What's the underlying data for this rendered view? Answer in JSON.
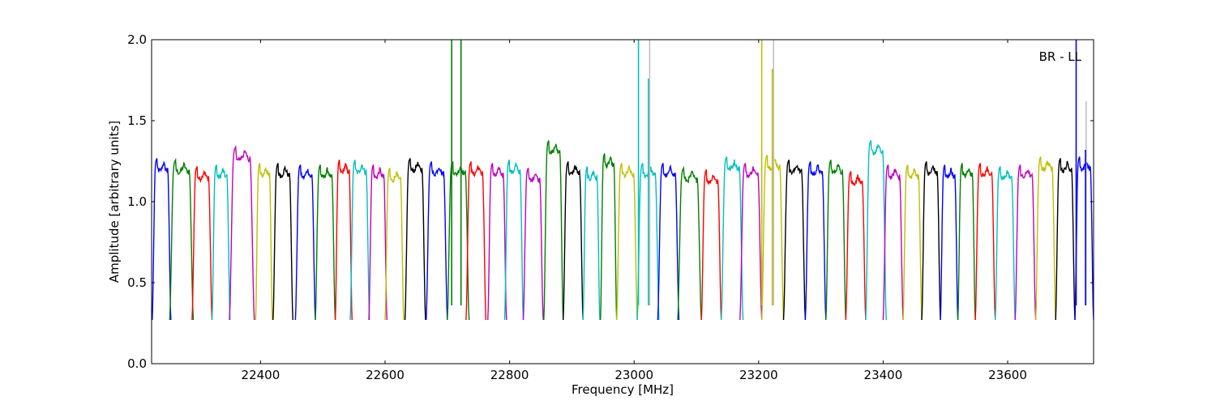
{
  "chart_data": {
    "type": "line",
    "title": "",
    "xlabel": "Frequency [MHz]",
    "ylabel": "Amplitude [arbitrary units]",
    "annotation": "BR - LL",
    "xlim": [
      22225,
      23738
    ],
    "ylim": [
      0.0,
      2.0
    ],
    "x_ticks": [
      22400,
      22600,
      22800,
      23000,
      23200,
      23400,
      23600
    ],
    "x_tick_labels": [
      "22400",
      "22600",
      "22800",
      "23000",
      "23200",
      "23400",
      "23600"
    ],
    "y_ticks": [
      0.0,
      0.5,
      1.0,
      1.5,
      2.0
    ],
    "y_tick_labels": [
      "0.0",
      "0.5",
      "1.0",
      "1.5",
      "2.0"
    ],
    "grid": false,
    "color_cycle": [
      "#0000ff",
      "#008000",
      "#ff0000",
      "#00bfbf",
      "#bf00bf",
      "#bfbf00",
      "#000000"
    ],
    "channel_shape": {
      "description": "each spectral channel: steep rise from ~0.28, flat top ~1.2, steep fall to ~0.28",
      "edge_low": 0.27,
      "top_level": 1.2
    },
    "series": [
      {
        "x0": 22226,
        "x1": 22256,
        "peak": 1.27,
        "color": "#0000ff"
      },
      {
        "x0": 22254,
        "x1": 22292,
        "peak": 1.26,
        "color": "#008000"
      },
      {
        "x0": 22290,
        "x1": 22322,
        "peak": 1.22,
        "color": "#ff0000"
      },
      {
        "x0": 22322,
        "x1": 22351,
        "peak": 1.23,
        "color": "#00bfbf"
      },
      {
        "x0": 22350,
        "x1": 22390,
        "peak": 1.34,
        "color": "#bf00bf"
      },
      {
        "x0": 22392,
        "x1": 22419,
        "peak": 1.24,
        "color": "#bfbf00"
      },
      {
        "x0": 22420,
        "x1": 22452,
        "peak": 1.24,
        "color": "#000000"
      },
      {
        "x0": 22456,
        "x1": 22488,
        "peak": 1.23,
        "color": "#0000ff"
      },
      {
        "x0": 22488,
        "x1": 22520,
        "peak": 1.23,
        "color": "#008000"
      },
      {
        "x0": 22520,
        "x1": 22547,
        "peak": 1.26,
        "color": "#ff0000"
      },
      {
        "x0": 22544,
        "x1": 22575,
        "peak": 1.26,
        "color": "#00bfbf"
      },
      {
        "x0": 22574,
        "x1": 22603,
        "peak": 1.23,
        "color": "#bf00bf"
      },
      {
        "x0": 22600,
        "x1": 22630,
        "peak": 1.21,
        "color": "#bfbf00"
      },
      {
        "x0": 22632,
        "x1": 22665,
        "peak": 1.27,
        "color": "#000000"
      },
      {
        "x0": 22666,
        "x1": 22700,
        "peak": 1.25,
        "color": "#0000ff"
      },
      {
        "x0": 22700,
        "x1": 22735,
        "peak": 1.25,
        "color": "#008000"
      },
      {
        "x0": 22730,
        "x1": 22762,
        "peak": 1.25,
        "color": "#ff0000"
      },
      {
        "x0": 22765,
        "x1": 22795,
        "peak": 1.24,
        "color": "#bf00bf"
      },
      {
        "x0": 22792,
        "x1": 22822,
        "peak": 1.26,
        "color": "#00bfbf"
      },
      {
        "x0": 22822,
        "x1": 22854,
        "peak": 1.21,
        "color": "#bf00bf"
      },
      {
        "x0": 22855,
        "x1": 22886,
        "peak": 1.38,
        "color": "#008000"
      },
      {
        "x0": 22886,
        "x1": 22918,
        "peak": 1.25,
        "color": "#000000"
      },
      {
        "x0": 22918,
        "x1": 22945,
        "peak": 1.22,
        "color": "#00bfbf"
      },
      {
        "x0": 22946,
        "x1": 22972,
        "peak": 1.3,
        "color": "#008000"
      },
      {
        "x0": 22972,
        "x1": 23005,
        "peak": 1.24,
        "color": "#bfbf00"
      },
      {
        "x0": 23005,
        "x1": 23040,
        "peak": 1.24,
        "color": "#00bfbf"
      },
      {
        "x0": 23038,
        "x1": 23072,
        "peak": 1.24,
        "color": "#0000ff"
      },
      {
        "x0": 23070,
        "x1": 23108,
        "peak": 1.21,
        "color": "#008000"
      },
      {
        "x0": 23108,
        "x1": 23140,
        "peak": 1.2,
        "color": "#ff0000"
      },
      {
        "x0": 23140,
        "x1": 23175,
        "peak": 1.28,
        "color": "#00bfbf"
      },
      {
        "x0": 23170,
        "x1": 23205,
        "peak": 1.24,
        "color": "#bf00bf"
      },
      {
        "x0": 23205,
        "x1": 23240,
        "peak": 1.29,
        "color": "#bfbf00"
      },
      {
        "x0": 23240,
        "x1": 23275,
        "peak": 1.26,
        "color": "#000000"
      },
      {
        "x0": 23275,
        "x1": 23308,
        "peak": 1.25,
        "color": "#0000ff"
      },
      {
        "x0": 23308,
        "x1": 23340,
        "peak": 1.26,
        "color": "#008000"
      },
      {
        "x0": 23340,
        "x1": 23372,
        "peak": 1.19,
        "color": "#ff0000"
      },
      {
        "x0": 23372,
        "x1": 23405,
        "peak": 1.38,
        "color": "#00bfbf"
      },
      {
        "x0": 23400,
        "x1": 23432,
        "peak": 1.23,
        "color": "#bf00bf"
      },
      {
        "x0": 23432,
        "x1": 23462,
        "peak": 1.23,
        "color": "#bfbf00"
      },
      {
        "x0": 23462,
        "x1": 23492,
        "peak": 1.25,
        "color": "#000000"
      },
      {
        "x0": 23492,
        "x1": 23520,
        "peak": 1.23,
        "color": "#0000ff"
      },
      {
        "x0": 23520,
        "x1": 23548,
        "peak": 1.24,
        "color": "#008000"
      },
      {
        "x0": 23548,
        "x1": 23580,
        "peak": 1.24,
        "color": "#ff0000"
      },
      {
        "x0": 23580,
        "x1": 23612,
        "peak": 1.22,
        "color": "#00bfbf"
      },
      {
        "x0": 23612,
        "x1": 23645,
        "peak": 1.23,
        "color": "#bf00bf"
      },
      {
        "x0": 23645,
        "x1": 23677,
        "peak": 1.28,
        "color": "#bfbf00"
      },
      {
        "x0": 23677,
        "x1": 23708,
        "peak": 1.27,
        "color": "#000000"
      },
      {
        "x0": 23708,
        "x1": 23738,
        "peak": 1.28,
        "color": "#0000ff"
      }
    ],
    "spikes": [
      {
        "x": 22707,
        "y": 2.0,
        "color": "#008000"
      },
      {
        "x": 22722,
        "y": 2.0,
        "color": "#008000"
      },
      {
        "x": 23007,
        "y": 2.0,
        "color": "#00bfbf"
      },
      {
        "x": 23023,
        "y": 1.76,
        "color": "#00bfbf"
      },
      {
        "x": 23025,
        "y": 2.0,
        "color": "#c0c0c0"
      },
      {
        "x": 23205,
        "y": 2.0,
        "color": "#bfbf00"
      },
      {
        "x": 23222,
        "y": 1.82,
        "color": "#bfbf00"
      },
      {
        "x": 23224,
        "y": 2.0,
        "color": "#c0c0c0"
      },
      {
        "x": 23710,
        "y": 2.0,
        "color": "#0000ff"
      },
      {
        "x": 23726,
        "y": 1.62,
        "color": "#c0c0c0"
      },
      {
        "x": 23725,
        "y": 1.32,
        "color": "#0000ff"
      }
    ]
  }
}
